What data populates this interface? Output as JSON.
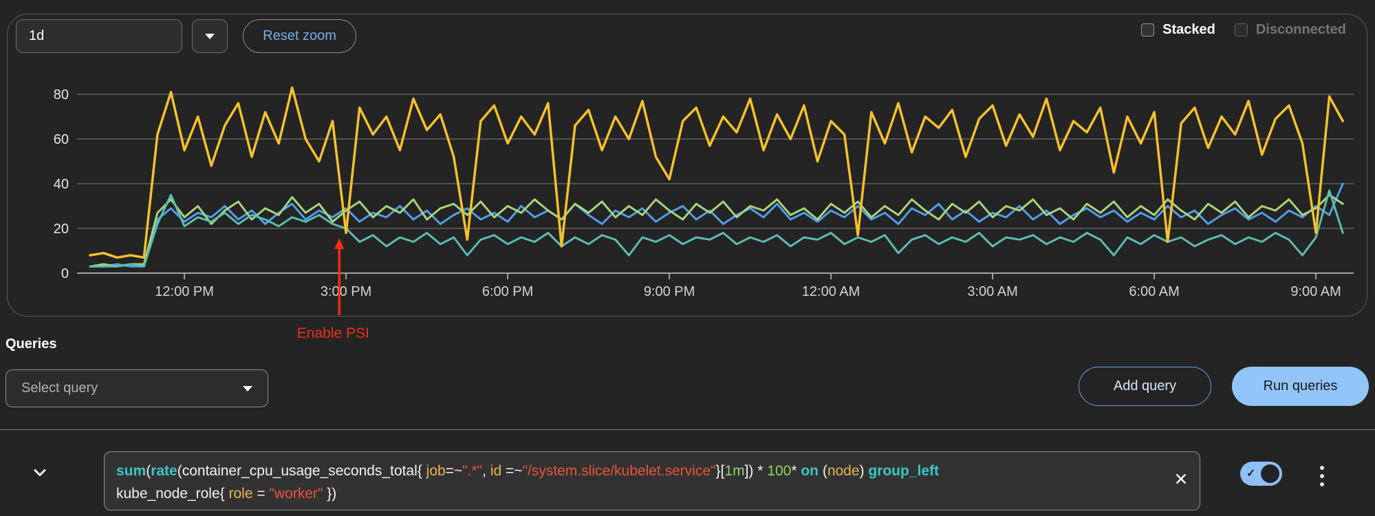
{
  "toolbar": {
    "time_range_value": "1d",
    "reset_zoom_label": "Reset zoom",
    "stacked_label": "Stacked",
    "disconnected_label": "Disconnected"
  },
  "queries": {
    "heading": "Queries",
    "select_placeholder": "Select query",
    "add_query_label": "Add query",
    "run_queries_label": "Run queries"
  },
  "query_row": {
    "enabled": true,
    "expression_lines": [
      [
        {
          "text": "sum",
          "type": "kw"
        },
        {
          "text": "(",
          "type": "plain"
        },
        {
          "text": "rate",
          "type": "kw"
        },
        {
          "text": "(container_cpu_usage_seconds_total{ ",
          "type": "plain"
        },
        {
          "text": "job",
          "type": "label"
        },
        {
          "text": "=~",
          "type": "plain"
        },
        {
          "text": "\".*\"",
          "type": "string"
        },
        {
          "text": ", ",
          "type": "plain"
        },
        {
          "text": "id",
          "type": "label"
        },
        {
          "text": " =~",
          "type": "plain"
        },
        {
          "text": "\"/system.slice/kubelet.service\"",
          "type": "string"
        },
        {
          "text": "}[",
          "type": "plain"
        },
        {
          "text": "1m",
          "type": "number"
        },
        {
          "text": "]) * ",
          "type": "plain"
        },
        {
          "text": "100",
          "type": "number"
        },
        {
          "text": "* ",
          "type": "plain"
        },
        {
          "text": "on",
          "type": "kw"
        },
        {
          "text": " (",
          "type": "plain"
        },
        {
          "text": "node",
          "type": "label"
        },
        {
          "text": ") ",
          "type": "plain"
        },
        {
          "text": "group_left",
          "type": "kw"
        }
      ],
      [
        {
          "text": "kube_node_role{ ",
          "type": "plain"
        },
        {
          "text": "role",
          "type": "label"
        },
        {
          "text": " = ",
          "type": "plain"
        },
        {
          "text": "\"worker\"",
          "type": "string"
        },
        {
          "text": " })",
          "type": "plain"
        }
      ]
    ]
  },
  "chart_data": {
    "type": "line",
    "x_start_time": "10:15 AM",
    "x_step_minutes": 15,
    "x_ticks": [
      {
        "index": 7,
        "label": "12:00 PM"
      },
      {
        "index": 19,
        "label": "3:00 PM"
      },
      {
        "index": 31,
        "label": "6:00 PM"
      },
      {
        "index": 43,
        "label": "9:00 PM"
      },
      {
        "index": 55,
        "label": "12:00 AM"
      },
      {
        "index": 67,
        "label": "3:00 AM"
      },
      {
        "index": 79,
        "label": "6:00 AM"
      },
      {
        "index": 91,
        "label": "9:00 AM"
      }
    ],
    "y_ticks": [
      0,
      20,
      40,
      60,
      80
    ],
    "ylim": [
      0,
      85
    ],
    "grid": true,
    "legend": false,
    "annotation": {
      "label": "Enable PSI",
      "at_index": 18.5,
      "color": "#ef2f14"
    },
    "series": [
      {
        "name": "series-blue",
        "color": "#519de9",
        "values": [
          3,
          3,
          4,
          3,
          3,
          24,
          29,
          23,
          27,
          25,
          30,
          24,
          28,
          22,
          27,
          31,
          24,
          28,
          25,
          29,
          23,
          27,
          25,
          30,
          24,
          28,
          22,
          26,
          29,
          24,
          27,
          23,
          30,
          25,
          28,
          24,
          31,
          26,
          22,
          28,
          25,
          29,
          23,
          27,
          30,
          24,
          28,
          22,
          26,
          29,
          25,
          31,
          24,
          27,
          23,
          28,
          25,
          30,
          24,
          27,
          22,
          29,
          26,
          31,
          24,
          28,
          23,
          27,
          25,
          30,
          24,
          28,
          22,
          26,
          29,
          25,
          28,
          23,
          27,
          24,
          30,
          25,
          28,
          22,
          26,
          29,
          24,
          27,
          23,
          28,
          25,
          30,
          26,
          40
        ]
      },
      {
        "name": "series-green",
        "color": "#a6d57a",
        "values": [
          3,
          4,
          3,
          4,
          4,
          27,
          33,
          25,
          30,
          22,
          28,
          32,
          24,
          29,
          26,
          34,
          27,
          31,
          23,
          28,
          32,
          25,
          30,
          27,
          33,
          24,
          29,
          31,
          26,
          32,
          25,
          30,
          27,
          33,
          28,
          24,
          31,
          27,
          32,
          25,
          30,
          26,
          33,
          28,
          24,
          31,
          27,
          32,
          25,
          30,
          28,
          33,
          26,
          29,
          24,
          31,
          27,
          32,
          25,
          30,
          26,
          33,
          28,
          24,
          31,
          27,
          32,
          25,
          30,
          28,
          33,
          26,
          29,
          24,
          31,
          27,
          32,
          25,
          30,
          26,
          33,
          28,
          24,
          31,
          27,
          32,
          25,
          30,
          28,
          33,
          26,
          29,
          35,
          31
        ]
      },
      {
        "name": "series-teal",
        "color": "#5cbcb0",
        "values": [
          3,
          3,
          3,
          4,
          3,
          22,
          35,
          21,
          25,
          23,
          27,
          22,
          26,
          24,
          21,
          25,
          23,
          26,
          22,
          20,
          14,
          17,
          12,
          16,
          14,
          18,
          13,
          16,
          8,
          15,
          17,
          13,
          16,
          14,
          18,
          12,
          16,
          13,
          17,
          15,
          8,
          16,
          14,
          17,
          13,
          16,
          15,
          18,
          13,
          16,
          14,
          17,
          12,
          16,
          15,
          18,
          13,
          16,
          14,
          17,
          9,
          15,
          17,
          13,
          16,
          14,
          18,
          12,
          16,
          15,
          17,
          13,
          16,
          14,
          18,
          15,
          8,
          16,
          13,
          17,
          14,
          16,
          12,
          15,
          17,
          13,
          16,
          14,
          18,
          15,
          8,
          16,
          37,
          18
        ]
      },
      {
        "name": "series-yellow",
        "color": "#f5c12e",
        "values": [
          8,
          9,
          7,
          8,
          7,
          62,
          81,
          55,
          70,
          48,
          66,
          76,
          52,
          72,
          58,
          83,
          60,
          50,
          68,
          18,
          74,
          62,
          70,
          55,
          78,
          64,
          71,
          52,
          15,
          68,
          75,
          58,
          70,
          62,
          76,
          12,
          66,
          73,
          55,
          70,
          60,
          77,
          52,
          42,
          68,
          74,
          57,
          70,
          63,
          78,
          55,
          71,
          60,
          75,
          50,
          68,
          62,
          17,
          72,
          58,
          76,
          54,
          70,
          65,
          73,
          52,
          69,
          75,
          57,
          71,
          61,
          78,
          55,
          68,
          63,
          74,
          45,
          70,
          58,
          72,
          14,
          67,
          74,
          56,
          70,
          62,
          77,
          53,
          69,
          75,
          58,
          18,
          79,
          68
        ]
      }
    ]
  }
}
